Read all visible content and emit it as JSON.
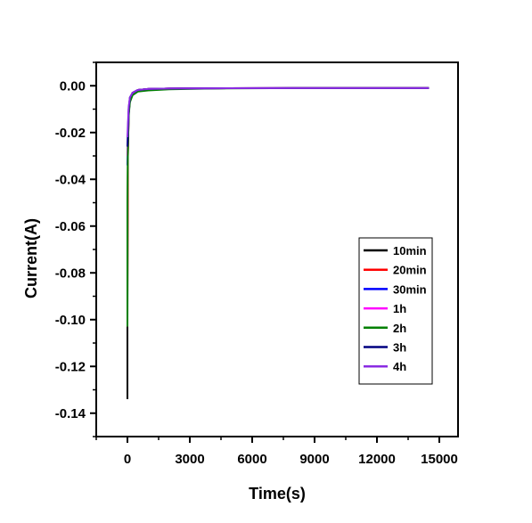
{
  "chart_data": {
    "type": "line",
    "title": "",
    "xlabel": "Time(s)",
    "ylabel": "Current(A)",
    "xlim": [
      -1500,
      15900
    ],
    "ylim": [
      -0.15,
      0.01
    ],
    "xticks": [
      0,
      3000,
      6000,
      9000,
      12000,
      15000
    ],
    "xtick_labels": [
      "0",
      "3000",
      "6000",
      "9000",
      "12000",
      "15000"
    ],
    "yticks": [
      0.0,
      -0.02,
      -0.04,
      -0.06,
      -0.08,
      -0.1,
      -0.12,
      -0.14
    ],
    "ytick_labels": [
      "0.00",
      "-0.02",
      "-0.04",
      "-0.06",
      "-0.08",
      "-0.10",
      "-0.12",
      "-0.14"
    ],
    "grid": false,
    "legend_position": "lower-right",
    "series": [
      {
        "name": "10min",
        "color": "#000000",
        "x": [
          0,
          0,
          20,
          60,
          120,
          250,
          500,
          1000,
          2000,
          4000,
          8000,
          12000,
          14500
        ],
        "y": [
          -0.134,
          -0.103,
          -0.03,
          -0.012,
          -0.006,
          -0.003,
          -0.0018,
          -0.0014,
          -0.0012,
          -0.0011,
          -0.001,
          -0.001,
          -0.001
        ]
      },
      {
        "name": "20min",
        "color": "#ff0000",
        "x": [
          0,
          0,
          20,
          60,
          120,
          250,
          500,
          1000,
          2000,
          4000,
          8000,
          12000,
          14500
        ],
        "y": [
          -0.103,
          -0.09,
          -0.03,
          -0.012,
          -0.006,
          -0.003,
          -0.0018,
          -0.0014,
          -0.0012,
          -0.0011,
          -0.001,
          -0.001,
          -0.001
        ]
      },
      {
        "name": "30min",
        "color": "#0000ff",
        "x": [
          0,
          20,
          60,
          120,
          250,
          500,
          1000,
          2000,
          4000,
          8000,
          12000,
          14500
        ],
        "y": [
          -0.034,
          -0.025,
          -0.012,
          -0.006,
          -0.003,
          -0.0018,
          -0.0014,
          -0.0012,
          -0.0011,
          -0.001,
          -0.001,
          -0.001
        ]
      },
      {
        "name": "1h",
        "color": "#ff00ff",
        "x": [
          0,
          20,
          60,
          120,
          250,
          500,
          1000,
          2000,
          4000,
          8000,
          12000,
          14500
        ],
        "y": [
          -0.03,
          -0.022,
          -0.011,
          -0.006,
          -0.003,
          -0.0018,
          -0.0014,
          -0.0012,
          -0.0011,
          -0.001,
          -0.001,
          -0.001
        ]
      },
      {
        "name": "2h",
        "color": "#008000",
        "x": [
          0,
          0,
          20,
          60,
          120,
          250,
          500,
          1000,
          2000,
          4000,
          8000,
          12000,
          14500
        ],
        "y": [
          -0.103,
          -0.05,
          -0.028,
          -0.013,
          -0.007,
          -0.004,
          -0.0025,
          -0.002,
          -0.0015,
          -0.0012,
          -0.001,
          -0.001,
          -0.001
        ]
      },
      {
        "name": "3h",
        "color": "#000080",
        "x": [
          0,
          20,
          60,
          120,
          250,
          500,
          1000,
          2000,
          4000,
          8000,
          12000,
          14500
        ],
        "y": [
          -0.026,
          -0.02,
          -0.01,
          -0.005,
          -0.003,
          -0.0018,
          -0.0014,
          -0.0012,
          -0.0011,
          -0.001,
          -0.001,
          -0.001
        ]
      },
      {
        "name": "4h",
        "color": "#8a2be2",
        "x": [
          0,
          20,
          60,
          120,
          250,
          500,
          1000,
          2000,
          4000,
          8000,
          12000,
          14500
        ],
        "y": [
          -0.022,
          -0.017,
          -0.009,
          -0.005,
          -0.003,
          -0.0018,
          -0.0014,
          -0.0012,
          -0.0011,
          -0.001,
          -0.001,
          -0.001
        ]
      }
    ]
  }
}
